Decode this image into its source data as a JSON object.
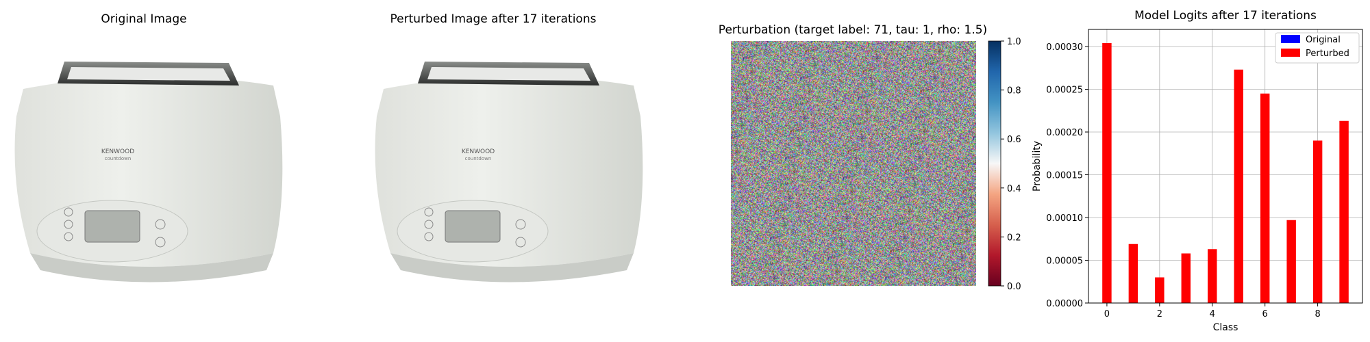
{
  "panels": {
    "original": {
      "title": "Original Image",
      "product": {
        "brand": "KENWOOD",
        "model": "countdown"
      }
    },
    "perturbed": {
      "title": "Perturbed Image after 17 iterations",
      "product": {
        "brand": "KENWOOD",
        "model": "countdown"
      }
    },
    "perturbation": {
      "title": "Perturbation (target label: 71, tau: 1, rho: 1.5)",
      "colorbar": {
        "colormap": "RdBu",
        "ticks": [
          "0.0",
          "0.2",
          "0.4",
          "0.6",
          "0.8",
          "1.0"
        ]
      }
    }
  },
  "chart_data": {
    "type": "bar",
    "title": "Model Logits after 17 iterations",
    "xlabel": "Class",
    "ylabel": "Probability",
    "x": [
      0,
      1,
      2,
      3,
      4,
      5,
      6,
      7,
      8,
      9
    ],
    "xticks": [
      "0",
      "2",
      "4",
      "6",
      "8"
    ],
    "yticks": [
      "0.00000",
      "0.00005",
      "0.00010",
      "0.00015",
      "0.00020",
      "0.00025",
      "0.00030"
    ],
    "ylim": [
      0,
      0.00032
    ],
    "xlim": [
      -0.7,
      9.7
    ],
    "grid": true,
    "legend_position": "top-right",
    "series": [
      {
        "name": "Original",
        "color": "#0000ff",
        "values": [
          0,
          0,
          0,
          0,
          0,
          0,
          0,
          0,
          0,
          0
        ]
      },
      {
        "name": "Perturbed",
        "color": "#ff0000",
        "values": [
          0.000304,
          6.9e-05,
          3e-05,
          5.8e-05,
          6.3e-05,
          0.000273,
          0.000245,
          9.7e-05,
          0.00019,
          0.000213
        ]
      }
    ]
  }
}
